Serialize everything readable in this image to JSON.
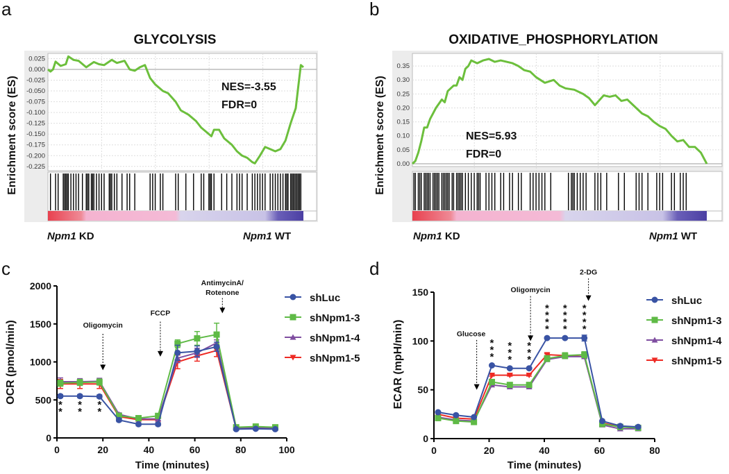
{
  "panel_letters": [
    "a",
    "b",
    "c",
    "d"
  ],
  "colors": {
    "shLuc": "#3953a4",
    "shNpm1-3": "#5fba46",
    "shNpm1-4": "#7f4ea0",
    "shNpm1-5": "#ee2a24",
    "es_curve": "#6cbf3c"
  },
  "chart_data": [
    {
      "type": "line",
      "panel": "a",
      "title": "GLYCOLYSIS",
      "ylabel": "Enrichment score (ES)",
      "yticks": [
        "0.025",
        "0.000",
        "-0.025",
        "-0.050",
        "-0.075",
        "-0.100",
        "-0.125",
        "-0.150",
        "-0.175",
        "-0.200",
        "-0.225"
      ],
      "ytick_values": [
        0.025,
        0,
        -0.025,
        -0.05,
        -0.075,
        -0.1,
        -0.125,
        -0.15,
        -0.175,
        -0.2,
        -0.225
      ],
      "ylim": [
        -0.235,
        0.037
      ],
      "nes": "NES=-3.55",
      "fdr": "FDR=0",
      "left_phenotype": {
        "gene": "Npm1",
        "suffix": " KD"
      },
      "right_phenotype": {
        "gene": "Npm1",
        "suffix": " WT"
      },
      "curve_x_rank_fraction": [
        0,
        0.01,
        0.02,
        0.03,
        0.05,
        0.07,
        0.08,
        0.1,
        0.12,
        0.15,
        0.18,
        0.2,
        0.22,
        0.25,
        0.27,
        0.3,
        0.32,
        0.34,
        0.36,
        0.38,
        0.4,
        0.42,
        0.45,
        0.47,
        0.5,
        0.52,
        0.55,
        0.58,
        0.6,
        0.62,
        0.64,
        0.65,
        0.67,
        0.69,
        0.72,
        0.74,
        0.76,
        0.78,
        0.8,
        0.81,
        0.83,
        0.85,
        0.87,
        0.89,
        0.91,
        0.93,
        0.95,
        0.97,
        0.98,
        0.99,
        1.0
      ],
      "curve_es": [
        0,
        -0.005,
        0.0,
        0.018,
        0.008,
        0.012,
        0.03,
        0.022,
        0.02,
        0.005,
        0.017,
        0.012,
        0.01,
        0.022,
        0.015,
        0.02,
        0.0,
        -0.003,
        0.005,
        0.01,
        -0.02,
        -0.035,
        -0.05,
        -0.055,
        -0.075,
        -0.095,
        -0.105,
        -0.12,
        -0.135,
        -0.145,
        -0.155,
        -0.14,
        -0.14,
        -0.16,
        -0.175,
        -0.19,
        -0.2,
        -0.205,
        -0.215,
        -0.218,
        -0.2,
        -0.18,
        -0.185,
        -0.19,
        -0.185,
        -0.165,
        -0.125,
        -0.09,
        -0.04,
        0.01,
        0.005
      ],
      "hits_rank_fraction": [
        0.01,
        0.03,
        0.04,
        0.06,
        0.065,
        0.07,
        0.075,
        0.08,
        0.09,
        0.1,
        0.11,
        0.12,
        0.135,
        0.15,
        0.155,
        0.16,
        0.17,
        0.175,
        0.18,
        0.19,
        0.2,
        0.21,
        0.22,
        0.24,
        0.245,
        0.25,
        0.26,
        0.27,
        0.29,
        0.31,
        0.32,
        0.34,
        0.4,
        0.41,
        0.42,
        0.44,
        0.45,
        0.5,
        0.51,
        0.54,
        0.57,
        0.6,
        0.61,
        0.63,
        0.635,
        0.64,
        0.65,
        0.68,
        0.7,
        0.72,
        0.74,
        0.75,
        0.76,
        0.78,
        0.8,
        0.81,
        0.82,
        0.83,
        0.84,
        0.85,
        0.87,
        0.88,
        0.89,
        0.9,
        0.91,
        0.92,
        0.93,
        0.935,
        0.94,
        0.95,
        0.955,
        0.96,
        0.965,
        0.97,
        0.975,
        0.98,
        0.985,
        0.99
      ]
    },
    {
      "type": "line",
      "panel": "b",
      "title": "OXIDATIVE_PHOSPHORYLATION",
      "ylabel": "Enrichment score (ES)",
      "yticks": [
        "0.35",
        "0.30",
        "0.25",
        "0.20",
        "0.15",
        "0.10",
        "0.05",
        "0.00"
      ],
      "ytick_values": [
        0.35,
        0.3,
        0.25,
        0.2,
        0.15,
        0.1,
        0.05,
        0
      ],
      "ylim": [
        -0.01,
        0.395
      ],
      "nes": "NES=5.93",
      "fdr": "FDR=0",
      "left_phenotype": {
        "gene": "Npm1",
        "suffix": " KD"
      },
      "right_phenotype": {
        "gene": "Npm1",
        "suffix": " WT"
      },
      "curve_x_rank_fraction": [
        0,
        0.01,
        0.02,
        0.03,
        0.04,
        0.05,
        0.06,
        0.07,
        0.08,
        0.1,
        0.11,
        0.12,
        0.14,
        0.15,
        0.16,
        0.17,
        0.18,
        0.19,
        0.2,
        0.22,
        0.24,
        0.26,
        0.28,
        0.3,
        0.32,
        0.34,
        0.36,
        0.38,
        0.4,
        0.42,
        0.45,
        0.48,
        0.5,
        0.52,
        0.55,
        0.58,
        0.6,
        0.62,
        0.65,
        0.67,
        0.69,
        0.71,
        0.73,
        0.75,
        0.78,
        0.8,
        0.82,
        0.84,
        0.86,
        0.88,
        0.9,
        0.92,
        0.94,
        0.96,
        0.98,
        1.0
      ],
      "curve_es": [
        0,
        0.01,
        0.04,
        0.08,
        0.13,
        0.13,
        0.16,
        0.18,
        0.2,
        0.23,
        0.22,
        0.26,
        0.28,
        0.28,
        0.31,
        0.3,
        0.34,
        0.35,
        0.37,
        0.36,
        0.37,
        0.375,
        0.365,
        0.37,
        0.365,
        0.36,
        0.35,
        0.335,
        0.33,
        0.31,
        0.29,
        0.3,
        0.28,
        0.27,
        0.265,
        0.25,
        0.235,
        0.21,
        0.245,
        0.24,
        0.245,
        0.225,
        0.23,
        0.21,
        0.18,
        0.17,
        0.15,
        0.135,
        0.125,
        0.1,
        0.08,
        0.085,
        0.06,
        0.06,
        0.04,
        0.0
      ],
      "hits_rank_fraction": [
        0.005,
        0.01,
        0.02,
        0.025,
        0.03,
        0.04,
        0.045,
        0.05,
        0.055,
        0.06,
        0.07,
        0.075,
        0.08,
        0.085,
        0.09,
        0.1,
        0.105,
        0.11,
        0.115,
        0.12,
        0.125,
        0.135,
        0.14,
        0.15,
        0.155,
        0.16,
        0.165,
        0.17,
        0.18,
        0.19,
        0.2,
        0.21,
        0.22,
        0.225,
        0.23,
        0.25,
        0.26,
        0.27,
        0.28,
        0.3,
        0.31,
        0.33,
        0.34,
        0.36,
        0.37,
        0.4,
        0.41,
        0.42,
        0.43,
        0.44,
        0.45,
        0.47,
        0.53,
        0.54,
        0.545,
        0.55,
        0.56,
        0.57,
        0.58,
        0.59,
        0.62,
        0.63,
        0.64,
        0.66,
        0.7,
        0.72,
        0.76,
        0.77,
        0.78,
        0.8,
        0.83,
        0.84,
        0.85,
        0.88,
        0.89,
        0.91,
        0.92,
        0.93
      ]
    },
    {
      "type": "line",
      "panel": "c",
      "xlabel": "Time (minutes)",
      "ylabel": "OCR (pmol/min)",
      "xlim": [
        0,
        100
      ],
      "ylim": [
        0,
        2000
      ],
      "xticks": [
        "0",
        "20",
        "40",
        "60",
        "80",
        "100"
      ],
      "xtick_values": [
        0,
        20,
        40,
        60,
        80,
        100
      ],
      "yticks": [
        "0",
        "500",
        "1000",
        "1500",
        "2000"
      ],
      "ytick_values": [
        0,
        500,
        1000,
        1500,
        2000
      ],
      "x": [
        1.5,
        10,
        18.5,
        27,
        35.5,
        44,
        52.5,
        61,
        69.5,
        78,
        86.5,
        95
      ],
      "series": [
        {
          "name": "shLuc",
          "marker": "circle",
          "values": [
            550,
            550,
            545,
            235,
            180,
            180,
            1120,
            1140,
            1200,
            115,
            120,
            115
          ],
          "err": [
            20,
            20,
            20,
            20,
            20,
            20,
            100,
            70,
            60,
            15,
            15,
            15
          ]
        },
        {
          "name": "shNpm1-3",
          "marker": "square",
          "values": [
            720,
            730,
            735,
            290,
            260,
            290,
            1240,
            1310,
            1360,
            140,
            150,
            140
          ],
          "err": [
            40,
            40,
            40,
            20,
            20,
            20,
            50,
            90,
            150,
            15,
            15,
            15
          ]
        },
        {
          "name": "shNpm1-4",
          "marker": "triangle-up",
          "values": [
            740,
            740,
            745,
            310,
            250,
            250,
            1050,
            1120,
            1250,
            130,
            140,
            130
          ],
          "err": [
            50,
            40,
            40,
            20,
            20,
            20,
            60,
            60,
            40,
            15,
            15,
            15
          ]
        },
        {
          "name": "shNpm1-5",
          "marker": "triangle-down",
          "values": [
            710,
            710,
            710,
            280,
            240,
            240,
            1000,
            1080,
            1150,
            120,
            130,
            125
          ],
          "err": [
            60,
            60,
            60,
            20,
            20,
            20,
            90,
            70,
            80,
            15,
            15,
            15
          ]
        }
      ],
      "annotations": [
        {
          "label": "Oligomycin",
          "x": 20,
          "y_text": 1450,
          "arrow_from": 1370,
          "arrow_to": 890
        },
        {
          "label": "FCCP",
          "x": 45,
          "y_text": 1610,
          "arrow_from": 1530,
          "arrow_to": 1070
        },
        {
          "label": "AntimycinA/",
          "label2": "Rotenone",
          "x": 72,
          "y_text": 2010,
          "arrow_from": 1840,
          "arrow_to": 1640
        }
      ],
      "significance": [
        {
          "x": 1.5,
          "stars": "**"
        },
        {
          "x": 10,
          "stars": "**"
        },
        {
          "x": 18.5,
          "stars": "**"
        }
      ]
    },
    {
      "type": "line",
      "panel": "d",
      "xlabel": "Time (minutes)",
      "ylabel": "ECAR (mpH/min)",
      "xlim": [
        0,
        80
      ],
      "ylim": [
        0,
        150
      ],
      "xticks": [
        "0",
        "20",
        "40",
        "60",
        "80"
      ],
      "xtick_values": [
        0,
        20,
        40,
        60,
        80
      ],
      "yticks": [
        "0",
        "50",
        "100",
        "150"
      ],
      "ytick_values": [
        0,
        50,
        100,
        150
      ],
      "x": [
        1.5,
        8,
        14.5,
        21,
        27.5,
        34.5,
        41,
        47.5,
        54.5,
        61,
        67.5,
        74
      ],
      "series": [
        {
          "name": "shLuc",
          "marker": "circle",
          "values": [
            27,
            24,
            22,
            75,
            72,
            72,
            103,
            103,
            103,
            18,
            13,
            12
          ],
          "err": [
            1,
            1,
            1,
            1,
            1,
            1,
            1,
            1,
            3,
            1,
            1,
            1
          ]
        },
        {
          "name": "shNpm1-3",
          "marker": "square",
          "values": [
            21,
            18,
            17,
            58,
            55,
            55,
            82,
            85,
            86,
            15,
            12,
            11
          ],
          "err": [
            1,
            1,
            1,
            2,
            2,
            2,
            3,
            3,
            3,
            1,
            1,
            1
          ]
        },
        {
          "name": "shNpm1-4",
          "marker": "triangle-up",
          "values": [
            22,
            19,
            18,
            55,
            53,
            53,
            81,
            84,
            84,
            14,
            10,
            10
          ],
          "err": [
            1,
            1,
            1,
            1,
            1,
            1,
            2,
            2,
            2,
            1,
            1,
            1
          ]
        },
        {
          "name": "shNpm1-5",
          "marker": "triangle-down",
          "values": [
            25,
            21,
            20,
            65,
            65,
            65,
            86,
            85,
            84,
            16,
            12,
            11
          ],
          "err": [
            1,
            1,
            1,
            1,
            1,
            1,
            1,
            1,
            1,
            1,
            1,
            1
          ]
        }
      ],
      "annotations": [
        {
          "label": "Glucose",
          "x": 15.5,
          "y_text": 105,
          "arrow_from": 101,
          "arrow_to": 50
        },
        {
          "label": "Oligomycin",
          "x": 35,
          "y_text": 150,
          "arrow_from": 146,
          "arrow_to": 100
        },
        {
          "label": "2-DG",
          "x": 56,
          "y_text": 168,
          "arrow_from": 164,
          "arrow_to": 141
        }
      ],
      "significance": [
        {
          "x": 21,
          "stars": "***"
        },
        {
          "x": 27.5,
          "stars": "***"
        },
        {
          "x": 34.5,
          "stars": "***"
        },
        {
          "x": 41,
          "stars": "****"
        },
        {
          "x": 47.5,
          "stars": "****"
        },
        {
          "x": 54.5,
          "stars": "****"
        }
      ]
    }
  ]
}
